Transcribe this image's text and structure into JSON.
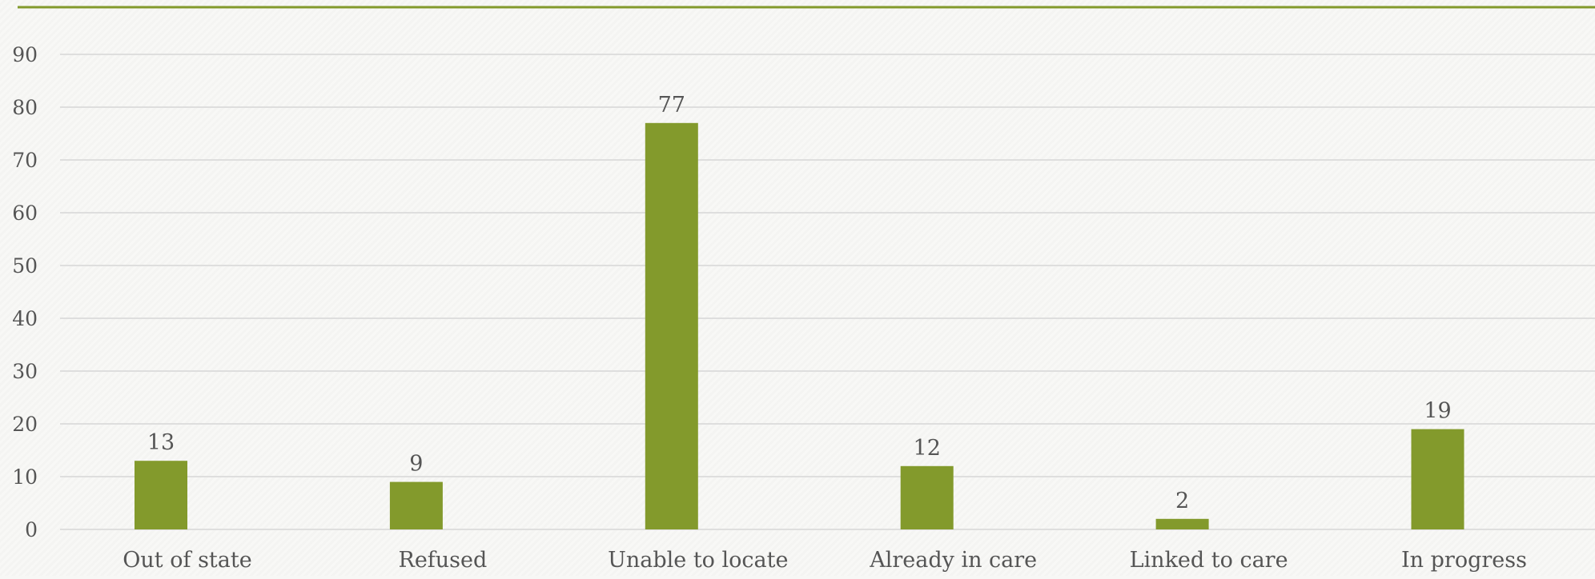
{
  "colors": {
    "bar": "#839a2c",
    "top_rule": "#839a2c",
    "grid": "#d6d6d6",
    "text": "#555555"
  },
  "chart_data": {
    "type": "bar",
    "categories": [
      "Out of state",
      "Refused",
      "Unable to locate",
      "Already in care",
      "Linked to care",
      "In progress"
    ],
    "values": [
      13,
      9,
      77,
      12,
      2,
      19
    ],
    "data_labels": [
      "13",
      "9",
      "77",
      "12",
      "2",
      "19"
    ],
    "title": "",
    "xlabel": "",
    "ylabel": "",
    "ylim": [
      0,
      90
    ],
    "yticks": [
      0,
      10,
      20,
      30,
      40,
      50,
      60,
      70,
      80,
      90
    ],
    "ytick_labels": [
      "0",
      "10",
      "20",
      "30",
      "40",
      "50",
      "60",
      "70",
      "80",
      "90"
    ],
    "grid": true,
    "legend": "none"
  }
}
